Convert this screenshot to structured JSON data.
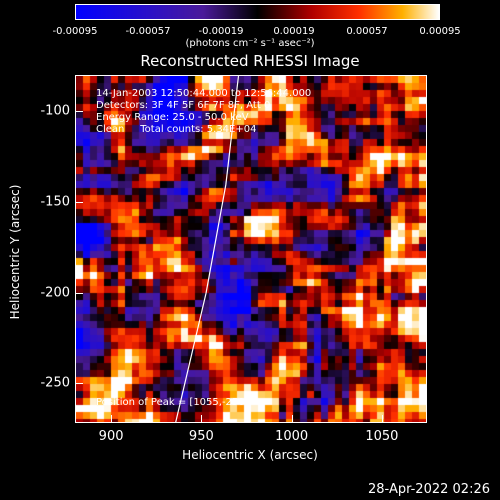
{
  "colorbar": {
    "ticks": [
      "-0.00095",
      "-0.00057",
      "-0.00019",
      "0.00019",
      "0.00057",
      "0.00095"
    ],
    "unit_label": "(photons cm⁻² s⁻¹ asec⁻²)",
    "range": [
      -0.00095,
      0.00095
    ]
  },
  "title": "Reconstructed RHESSI Image",
  "info": {
    "time_range": "14-Jan-2003 12:50:44.000 to 12:56:44.000",
    "detectors": "Detectors: 3F 4F 5F 6F 7F 8F, Att 0",
    "energy": "Energy Range: 25.0 - 50.0 keV",
    "clean": "Clean     Total counts: 5.34E+04"
  },
  "peak": "Position of Peak = [1055,-250]",
  "chart_data": {
    "type": "heatmap",
    "title": "Reconstructed RHESSI Image",
    "xlabel": "Heliocentric X (arcsec)",
    "ylabel": "Heliocentric Y (arcsec)",
    "xlim": [
      880,
      1075
    ],
    "ylim": [
      -272,
      -80
    ],
    "xticks": [
      "900",
      "950",
      "1000",
      "1050"
    ],
    "yticks": [
      "-100",
      "-150",
      "-200",
      "-250"
    ],
    "peak_position": [
      1055,
      -250
    ],
    "limb_curve": [
      [
        935,
        -272
      ],
      [
        952,
        -200
      ],
      [
        963,
        -140
      ],
      [
        970,
        -80
      ]
    ]
  },
  "footer": {
    "date": "28-Apr-2022 02:26"
  }
}
